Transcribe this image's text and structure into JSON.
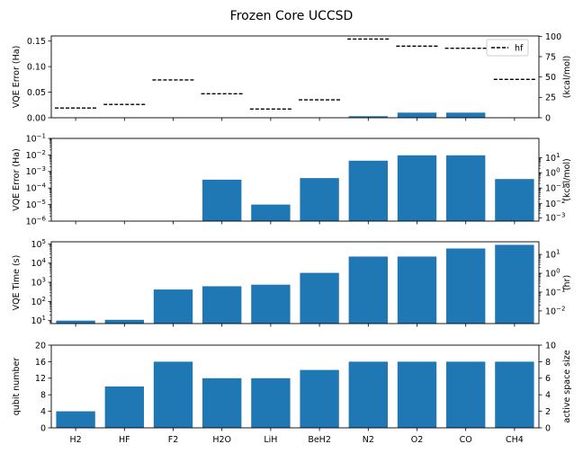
{
  "title": "Frozen Core UCCSD",
  "chart_data": [
    {
      "type": "bar",
      "categories": [
        "H2",
        "HF",
        "F2",
        "H2O",
        "LiH",
        "BeH2",
        "N2",
        "O2",
        "CO",
        "CH4"
      ],
      "ylabel": "VQE Error (Ha)",
      "ylabel_right": "(kcal/mol)",
      "ylim": [
        0,
        0.16
      ],
      "yticks": [
        0,
        0.05,
        0.1,
        0.15
      ],
      "ytick_labels": [
        "0.00",
        "0.05",
        "0.10",
        "0.15"
      ],
      "ylim_right": [
        0,
        100.4
      ],
      "yticks_right": [
        0,
        25,
        50,
        75,
        100
      ],
      "ytick_labels_right": [
        "0",
        "25",
        "50",
        "75",
        "100"
      ],
      "values": [
        0,
        0,
        0,
        0,
        0,
        0,
        0.003,
        0.01,
        0.01,
        0
      ],
      "hf_values": [
        0.019,
        0.026,
        0.074,
        0.047,
        0.017,
        0.035,
        0.154,
        0.14,
        0.136,
        0.075
      ],
      "legend": "hf",
      "legend_position": "top-right"
    },
    {
      "type": "bar",
      "scale": "log",
      "categories": [
        "H2",
        "HF",
        "F2",
        "H2O",
        "LiH",
        "BeH2",
        "N2",
        "O2",
        "CO",
        "CH4"
      ],
      "ylabel": "VQE Error (Ha)",
      "ylabel_right": "(kcal/mol)",
      "ylim": [
        1e-06,
        0.1
      ],
      "ytick_labels": [
        "10^-6",
        "10^-5",
        "10^-4",
        "10^-3",
        "10^-2",
        "10^-1"
      ],
      "ytick_labels_right": [
        "10^-3",
        "10^-2",
        "10^-1",
        "10^0",
        "10^1"
      ],
      "values": [
        null,
        null,
        null,
        0.00032,
        1e-05,
        0.0004,
        0.0045,
        0.0095,
        0.0095,
        0.00035
      ]
    },
    {
      "type": "bar",
      "scale": "log",
      "categories": [
        "H2",
        "HF",
        "F2",
        "H2O",
        "LiH",
        "BeH2",
        "N2",
        "O2",
        "CO",
        "CH4"
      ],
      "ylabel": "VQE Time (s)",
      "ylabel_right": "(hr)",
      "ylim": [
        7,
        130000.0
      ],
      "ytick_labels": [
        "10^1",
        "10^2",
        "10^3",
        "10^4",
        "10^5"
      ],
      "ytick_labels_right": [
        "10^-2",
        "10^-1",
        "10^0",
        "10^1"
      ],
      "values": [
        10,
        11,
        420,
        620,
        750,
        3100,
        22000,
        22000,
        58000,
        90000
      ]
    },
    {
      "type": "bar",
      "categories": [
        "H2",
        "HF",
        "F2",
        "H2O",
        "LiH",
        "BeH2",
        "N2",
        "O2",
        "CO",
        "CH4"
      ],
      "ylabel": "qubit number",
      "ylabel_right": "active space size",
      "ylim": [
        0,
        20
      ],
      "yticks": [
        0,
        4,
        8,
        12,
        16,
        20
      ],
      "ytick_labels": [
        "0",
        "4",
        "8",
        "12",
        "16",
        "20"
      ],
      "ylim_right": [
        0,
        10
      ],
      "yticks_right": [
        0,
        2,
        4,
        6,
        8,
        10
      ],
      "ytick_labels_right": [
        "0",
        "2",
        "4",
        "6",
        "8",
        "10"
      ],
      "values": [
        4,
        10,
        16,
        12,
        12,
        14,
        16,
        16,
        16,
        16
      ]
    }
  ],
  "colors": {
    "bar": "#1f77b4",
    "axis": "#000000",
    "hf_line": "#000000"
  }
}
